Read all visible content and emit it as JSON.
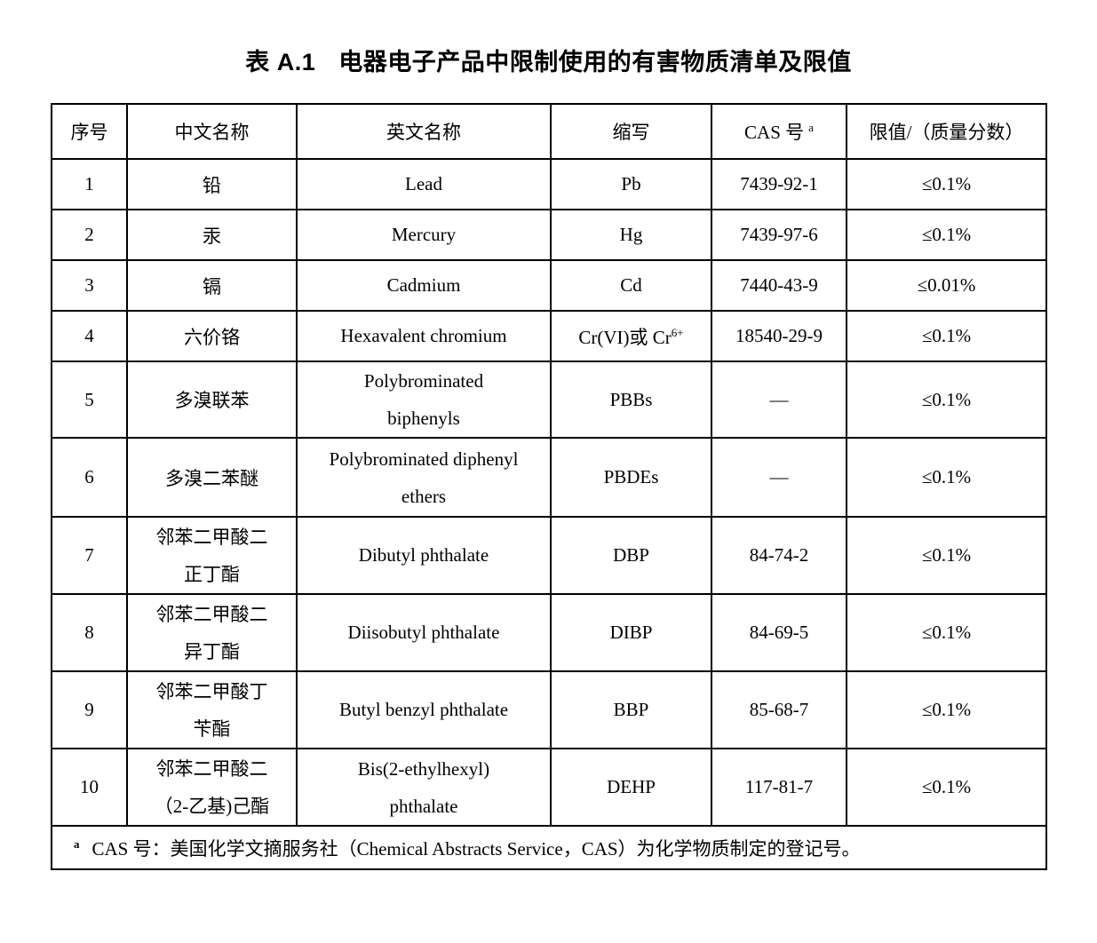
{
  "page": {
    "background_color": "#ffffff",
    "text_color": "#000000",
    "border_color": "#000000"
  },
  "title": {
    "label": "表 A.1",
    "text": "电器电子产品中限制使用的有害物质清单及限值"
  },
  "table": {
    "headers": [
      {
        "label": "序号"
      },
      {
        "label": "中文名称"
      },
      {
        "label": "英文名称"
      },
      {
        "label": "缩写"
      },
      {
        "label": "CAS 号",
        "sup": "a"
      },
      {
        "label": "限值/（质量分数）"
      }
    ],
    "rows": [
      {
        "no": "1",
        "cn": "铅",
        "en": "Lead",
        "abbr": "Pb",
        "cas": "7439-92-1",
        "limit": "≤0.1%"
      },
      {
        "no": "2",
        "cn": "汞",
        "en": "Mercury",
        "abbr": "Hg",
        "cas": "7439-97-6",
        "limit": "≤0.1%"
      },
      {
        "no": "3",
        "cn": "镉",
        "en": "Cadmium",
        "abbr": "Cd",
        "cas": "7440-43-9",
        "limit": "≤0.01%"
      },
      {
        "no": "4",
        "cn": "六价铬",
        "en": "Hexavalent chromium",
        "abbr": "Cr(VI)或 Cr",
        "abbr_sup": "6+",
        "cas": "18540-29-9",
        "limit": "≤0.1%"
      },
      {
        "no": "5",
        "cn": "多溴联苯",
        "en": "Polybrominated\nbiphenyls",
        "abbr": "PBBs",
        "cas": "—",
        "limit": "≤0.1%"
      },
      {
        "no": "6",
        "cn": "多溴二苯醚",
        "en": "Polybrominated diphenyl\nethers",
        "abbr": "PBDEs",
        "cas": "—",
        "limit": "≤0.1%"
      },
      {
        "no": "7",
        "cn": "邻苯二甲酸二\n正丁酯",
        "en": "Dibutyl phthalate",
        "abbr": "DBP",
        "cas": "84-74-2",
        "limit": "≤0.1%"
      },
      {
        "no": "8",
        "cn": "邻苯二甲酸二\n异丁酯",
        "en": "Diisobutyl phthalate",
        "abbr": "DIBP",
        "cas": "84-69-5",
        "limit": "≤0.1%"
      },
      {
        "no": "9",
        "cn": "邻苯二甲酸丁\n苄酯",
        "en": "Butyl benzyl phthalate",
        "abbr": "BBP",
        "cas": "85-68-7",
        "limit": "≤0.1%"
      },
      {
        "no": "10",
        "cn": "邻苯二甲酸二\n（2-乙基)己酯",
        "en": "Bis(2-ethylhexyl)\nphthalate",
        "abbr": "DEHP",
        "cas": "117-81-7",
        "limit": "≤0.1%"
      }
    ],
    "footnote": {
      "sup": "a",
      "text": "CAS 号：美国化学文摘服务社（Chemical Abstracts Service，CAS）为化学物质制定的登记号。"
    }
  }
}
